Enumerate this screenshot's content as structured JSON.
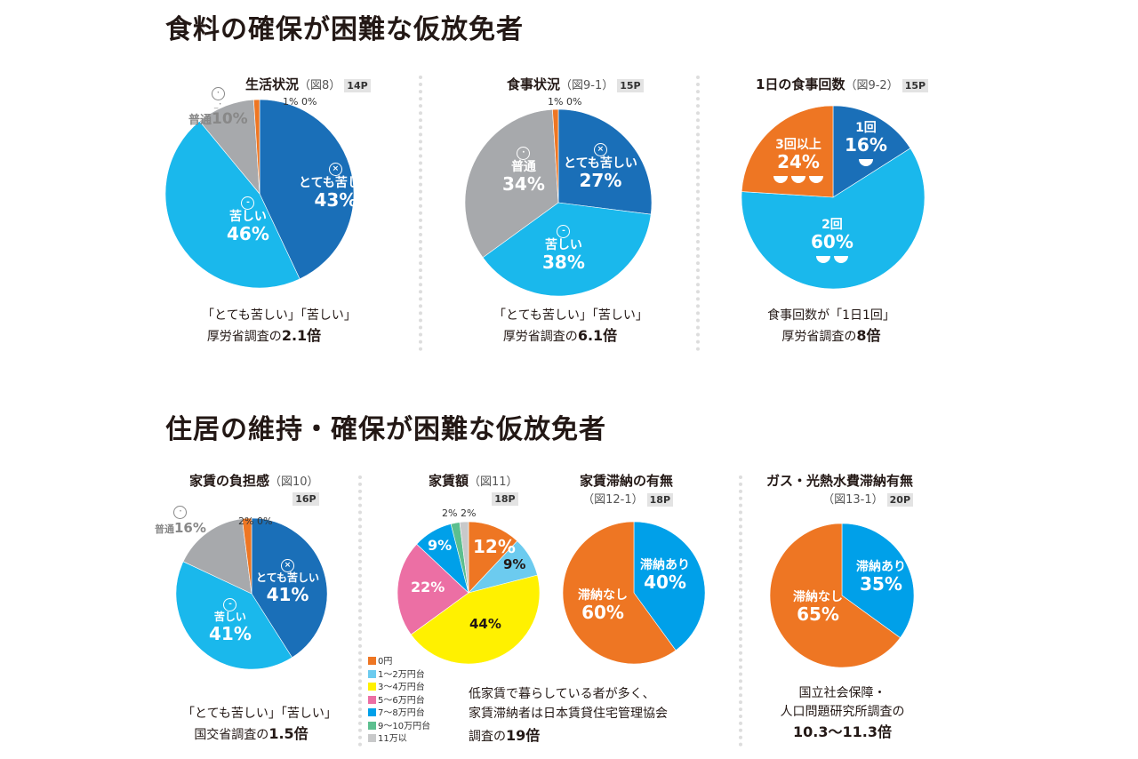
{
  "sections": [
    "食料の確保が困難な仮放免者",
    "住居の維持・確保が困難な仮放免者"
  ],
  "chart_data": [
    {
      "type": "pie",
      "title": "生活状況",
      "fig": "（図8）",
      "page": "14P",
      "slices": [
        {
          "label": "とても苦しい",
          "value": 43,
          "text": "43%",
          "color": "#1a6fb8"
        },
        {
          "label": "苦しい",
          "value": 46,
          "text": "46%",
          "color": "#1ab8ec"
        },
        {
          "label": "普通",
          "value": 10,
          "text": "10%",
          "color": "#a7a9ac"
        },
        {
          "label": "",
          "value": 1,
          "text": "1%",
          "color": "#ee7623"
        },
        {
          "label": "",
          "value": 0,
          "text": "0%",
          "color": "#ee7623"
        }
      ],
      "note": [
        "「とても苦しい」「苦しい」",
        "厚労省調査の",
        "2.1倍"
      ]
    },
    {
      "type": "pie",
      "title": "食事状況",
      "fig": "（図9-1）",
      "page": "15P",
      "slices": [
        {
          "label": "とても苦しい",
          "value": 27,
          "text": "27%",
          "color": "#1a6fb8"
        },
        {
          "label": "苦しい",
          "value": 38,
          "text": "38%",
          "color": "#1ab8ec"
        },
        {
          "label": "普通",
          "value": 34,
          "text": "34%",
          "color": "#a7a9ac"
        },
        {
          "label": "",
          "value": 1,
          "text": "1%",
          "color": "#ee7623"
        },
        {
          "label": "",
          "value": 0,
          "text": "0%",
          "color": "#ee7623"
        }
      ],
      "note": [
        "「とても苦しい」「苦しい」",
        "厚労省調査の",
        "6.1倍"
      ]
    },
    {
      "type": "pie",
      "title": "1日の食事回数",
      "fig": "（図9-2）",
      "page": "15P",
      "slices": [
        {
          "label": "1回",
          "value": 16,
          "text": "16%",
          "color": "#1a6fb8"
        },
        {
          "label": "2回",
          "value": 60,
          "text": "60%",
          "color": "#1ab8ec"
        },
        {
          "label": "3回以上",
          "value": 24,
          "text": "24%",
          "color": "#ee7623"
        }
      ],
      "note": [
        "食事回数が「1日1回」",
        "厚労省調査の",
        "8倍"
      ]
    },
    {
      "type": "pie",
      "title": "家賃の負担感",
      "fig": "（図10）",
      "page": "16P",
      "slices": [
        {
          "label": "とても苦しい",
          "value": 41,
          "text": "41%",
          "color": "#1a6fb8"
        },
        {
          "label": "苦しい",
          "value": 41,
          "text": "41%",
          "color": "#1ab8ec"
        },
        {
          "label": "普通",
          "value": 16,
          "text": "16%",
          "color": "#a7a9ac"
        },
        {
          "label": "",
          "value": 2,
          "text": "2%",
          "color": "#ee7623"
        },
        {
          "label": "",
          "value": 0,
          "text": "0%",
          "color": "#ee7623"
        }
      ],
      "note": [
        "「とても苦しい」「苦しい」",
        "国交省調査の",
        "1.5倍"
      ]
    },
    {
      "type": "pie",
      "title": "家賃額",
      "fig": "（図11）",
      "page": "18P",
      "slices": [
        {
          "label": "0円",
          "value": 12,
          "text": "12%",
          "color": "#ee7623"
        },
        {
          "label": "1～2万円台",
          "value": 9,
          "text": "9%",
          "color": "#6ccbef"
        },
        {
          "label": "3～4万円台",
          "value": 44,
          "text": "44%",
          "color": "#fff100"
        },
        {
          "label": "5～6万円台",
          "value": 22,
          "text": "22%",
          "color": "#ec6fa4"
        },
        {
          "label": "7～8万円台",
          "value": 9,
          "text": "9%",
          "color": "#00a0e9"
        },
        {
          "label": "9～10万円台",
          "value": 2,
          "text": "2%",
          "color": "#5cbf8f"
        },
        {
          "label": "11万以",
          "value": 2,
          "text": "2%",
          "color": "#c8c9ca"
        }
      ],
      "note": [
        "低家賃で暮らしている者が多く、",
        "家賃滞納者は日本賃貸住宅管理協会",
        "調査の",
        "19倍"
      ]
    },
    {
      "type": "pie",
      "title": "家賃滞納の有無",
      "fig": "（図12-1）",
      "page": "18P",
      "slices": [
        {
          "label": "滞納あり",
          "value": 40,
          "text": "40%",
          "color": "#00a0e9"
        },
        {
          "label": "滞納なし",
          "value": 60,
          "text": "60%",
          "color": "#ee7623"
        }
      ]
    },
    {
      "type": "pie",
      "title": "ガス・光熱水費滞納有無",
      "fig": "（図13-1）",
      "page": "20P",
      "slices": [
        {
          "label": "滞納あり",
          "value": 35,
          "text": "35%",
          "color": "#00a0e9"
        },
        {
          "label": "滞納なし",
          "value": 65,
          "text": "65%",
          "color": "#ee7623"
        }
      ],
      "note": [
        "国立社会保障・",
        "人口問題研究所調査の",
        "10.3～11.3倍"
      ]
    }
  ]
}
